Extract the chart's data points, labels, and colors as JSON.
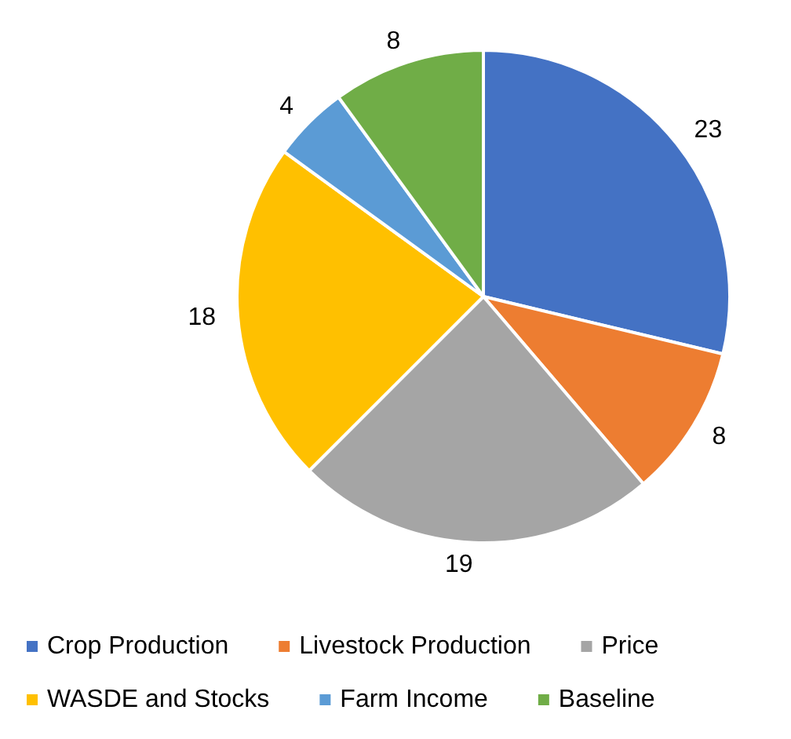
{
  "chart_data": {
    "type": "pie",
    "categories": [
      "Crop Production",
      "Livestock Production",
      "Price",
      "WASDE and Stocks",
      "Farm Income",
      "Baseline"
    ],
    "values": [
      23,
      8,
      19,
      18,
      4,
      8
    ],
    "colors": [
      "#4472c4",
      "#ed7d31",
      "#a5a5a5",
      "#ffc000",
      "#5b9bd5",
      "#70ad47"
    ],
    "data_labels": true,
    "legend": "bottom"
  }
}
